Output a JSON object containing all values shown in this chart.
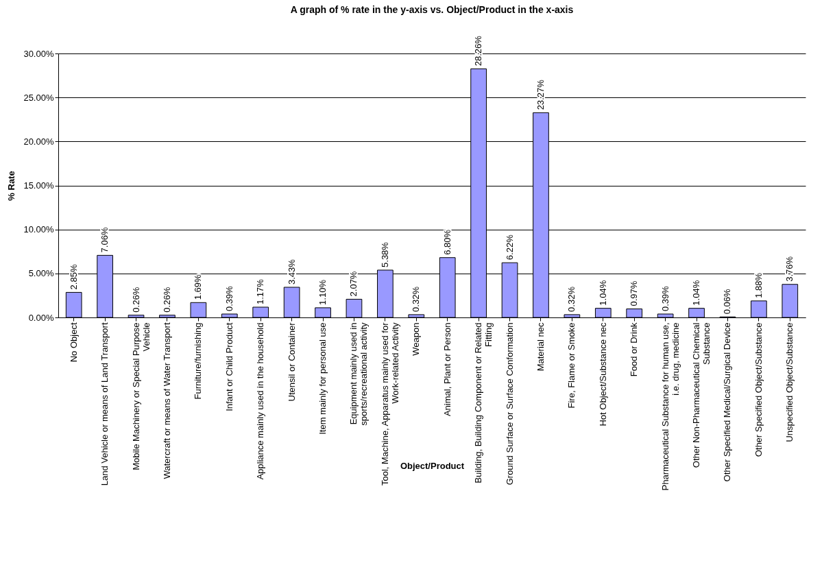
{
  "chart_data": {
    "type": "bar",
    "title": "A graph of % rate in the y-axis vs. Object/Product in the x-axis",
    "xlabel": "Object/Product",
    "ylabel": "% Rate",
    "categories": [
      "No Object",
      "Land Vehicle or means of Land Transport",
      "Mobile Machinery or Special Purpose Vehicle",
      "Watercraft or means of Water Transport",
      "Furniture/furnishing",
      "Infant or Child Product",
      "Appliance mainly used in the household",
      "Utensil or Container",
      "Item mainly for personal use",
      "Equipment mainly used in sports/recreational activity",
      "Tool, Machine, Apparatus mainly used for Work-related Activity",
      "Weapon",
      "Animal, Plant or Person",
      "Building, Building Component or Related Fitting",
      "Ground Surface or Surface Conformation",
      "Material nec",
      "Fire, Flame or Smoke",
      "Hot Object/Substance nec",
      "Food or Drink",
      "Pharmaceutical Substance for human use, i.e. drug, medicine",
      "Other Non-Pharmaceutical Chemical Substance",
      "Other Specified Medical/Surgical Device",
      "Other Specified Object/Substance",
      "Unspecified Object/Substance"
    ],
    "values": [
      2.85,
      7.06,
      0.26,
      0.26,
      1.69,
      0.39,
      1.17,
      3.43,
      1.1,
      2.07,
      5.38,
      0.32,
      6.8,
      28.26,
      6.22,
      23.27,
      0.32,
      1.04,
      0.97,
      0.39,
      1.04,
      0.06,
      1.88,
      3.76
    ],
    "value_labels": [
      "2.85%",
      "7.06%",
      "0.26%",
      "0.26%",
      "1.69%",
      "0.39%",
      "1.17%",
      "3.43%",
      "1.10%",
      "2.07%",
      "5.38%",
      "0.32%",
      "6.80%",
      "28.26%",
      "6.22%",
      "23.27%",
      "0.32%",
      "1.04%",
      "0.97%",
      "0.39%",
      "1.04%",
      "0.06%",
      "1.88%",
      "3.76%"
    ],
    "color": "#9999ff",
    "ylim": [
      0,
      30
    ],
    "yticks": [
      {
        "value": 0,
        "label": "0.00%"
      },
      {
        "value": 5,
        "label": "5.00%"
      },
      {
        "value": 10,
        "label": "10.00%"
      },
      {
        "value": 15,
        "label": "15.00%"
      },
      {
        "value": 20,
        "label": "20.00%"
      },
      {
        "value": 25,
        "label": "25.00%"
      },
      {
        "value": 30,
        "label": "30.00%"
      }
    ],
    "grid": "y"
  }
}
